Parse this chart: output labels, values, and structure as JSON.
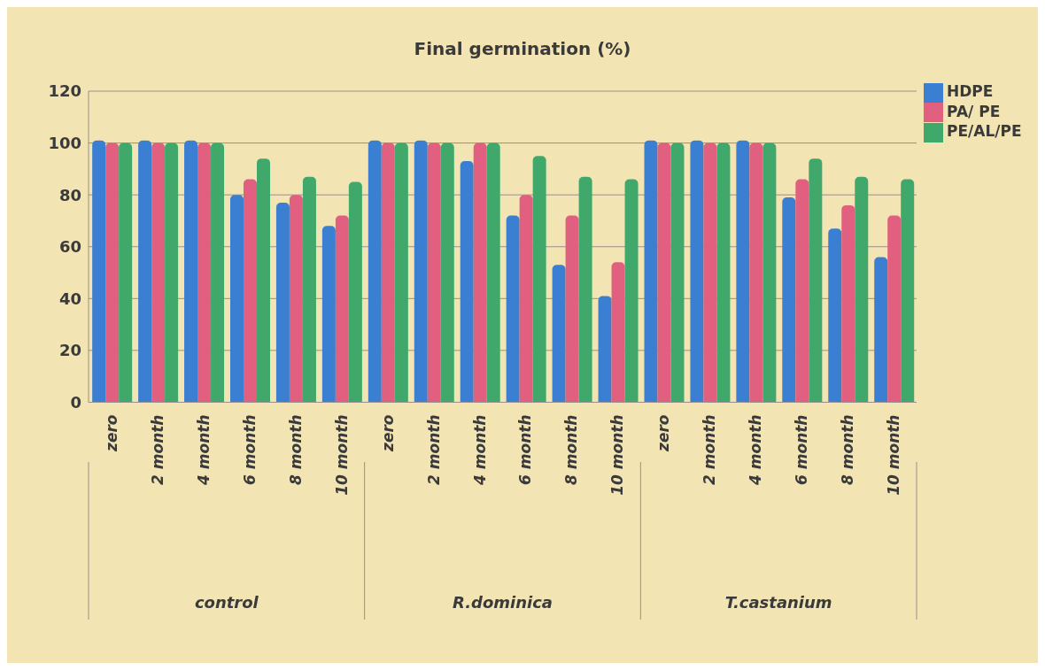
{
  "chart_data": {
    "type": "bar",
    "title": "Final germination (%)",
    "categories": [
      "zero",
      "2 month",
      "4 month",
      "6 month",
      "8 month",
      "10 month",
      "zero",
      "2 month",
      "4 month",
      "6 month",
      "8 month",
      "10 month",
      "zero",
      "2 month",
      "4 month",
      "6 month",
      "8 month",
      "10 month"
    ],
    "series": [
      {
        "name": "HDPE",
        "color": "#3b7fd2",
        "values": [
          101,
          101,
          101,
          80,
          77,
          68,
          101,
          101,
          93,
          72,
          53,
          41,
          101,
          101,
          101,
          79,
          67,
          56
        ]
      },
      {
        "name": "PA/ PE",
        "color": "#e2607f",
        "values": [
          100,
          100,
          100,
          86,
          80,
          72,
          100,
          100,
          100,
          80,
          72,
          54,
          100,
          100,
          100,
          86,
          76,
          72
        ]
      },
      {
        "name": "PE/AL/PE",
        "color": "#40a86b",
        "values": [
          100,
          100,
          100,
          94,
          87,
          85,
          100,
          100,
          100,
          95,
          87,
          86,
          100,
          100,
          100,
          94,
          87,
          86
        ]
      }
    ],
    "annotations": [
      "control",
      "R.dominica",
      "T.castanium"
    ],
    "ylim": [
      0,
      120
    ],
    "yticks": [
      0,
      20,
      40,
      60,
      80,
      100,
      120
    ],
    "grid": "y",
    "legend": "top right"
  }
}
